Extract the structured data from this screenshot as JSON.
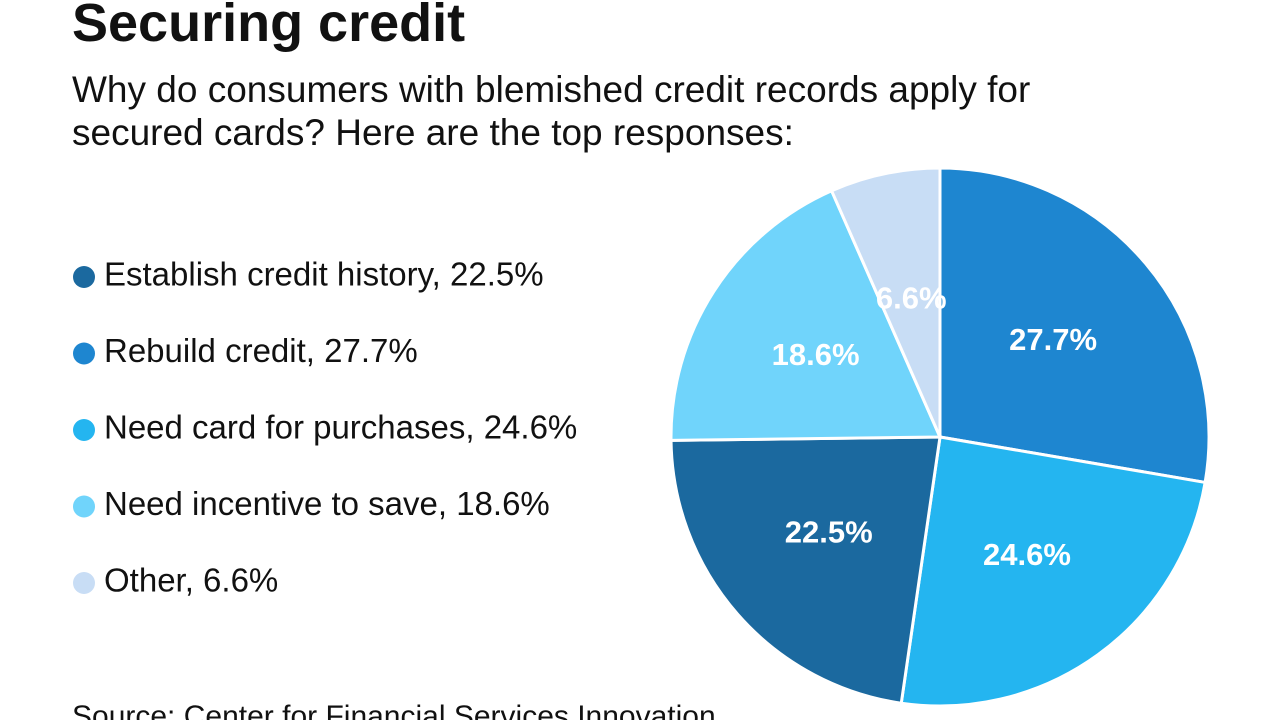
{
  "chart_data": {
    "type": "pie",
    "title": "Securing credit",
    "subtitle": "Why do consumers with blemished credit records apply for secured cards? Here are the top responses:",
    "source": "Source: Center for Financial Services Innovation",
    "categories": [
      "Rebuild credit",
      "Need card for purchases",
      "Establish credit history",
      "Need incentive to save",
      "Other"
    ],
    "values": [
      27.7,
      24.6,
      22.5,
      18.6,
      6.6
    ],
    "value_labels": [
      "27.7%",
      "24.6%",
      "22.5%",
      "18.6%",
      "6.6%"
    ],
    "colors": [
      "#1e86d0",
      "#24b5f0",
      "#1b699f",
      "#70d4fb",
      "#c8ddf5"
    ],
    "legend": [
      {
        "label": "Establish credit history, 22.5%",
        "color": "#1b699f"
      },
      {
        "label": "Rebuild credit, 27.7%",
        "color": "#1e86d0"
      },
      {
        "label": "Need card for purchases, 24.6%",
        "color": "#24b5f0"
      },
      {
        "label": "Need incentive to save, 18.6%",
        "color": "#70d4fb"
      },
      {
        "label": "Other, 6.6%",
        "color": "#c8ddf5"
      }
    ]
  }
}
